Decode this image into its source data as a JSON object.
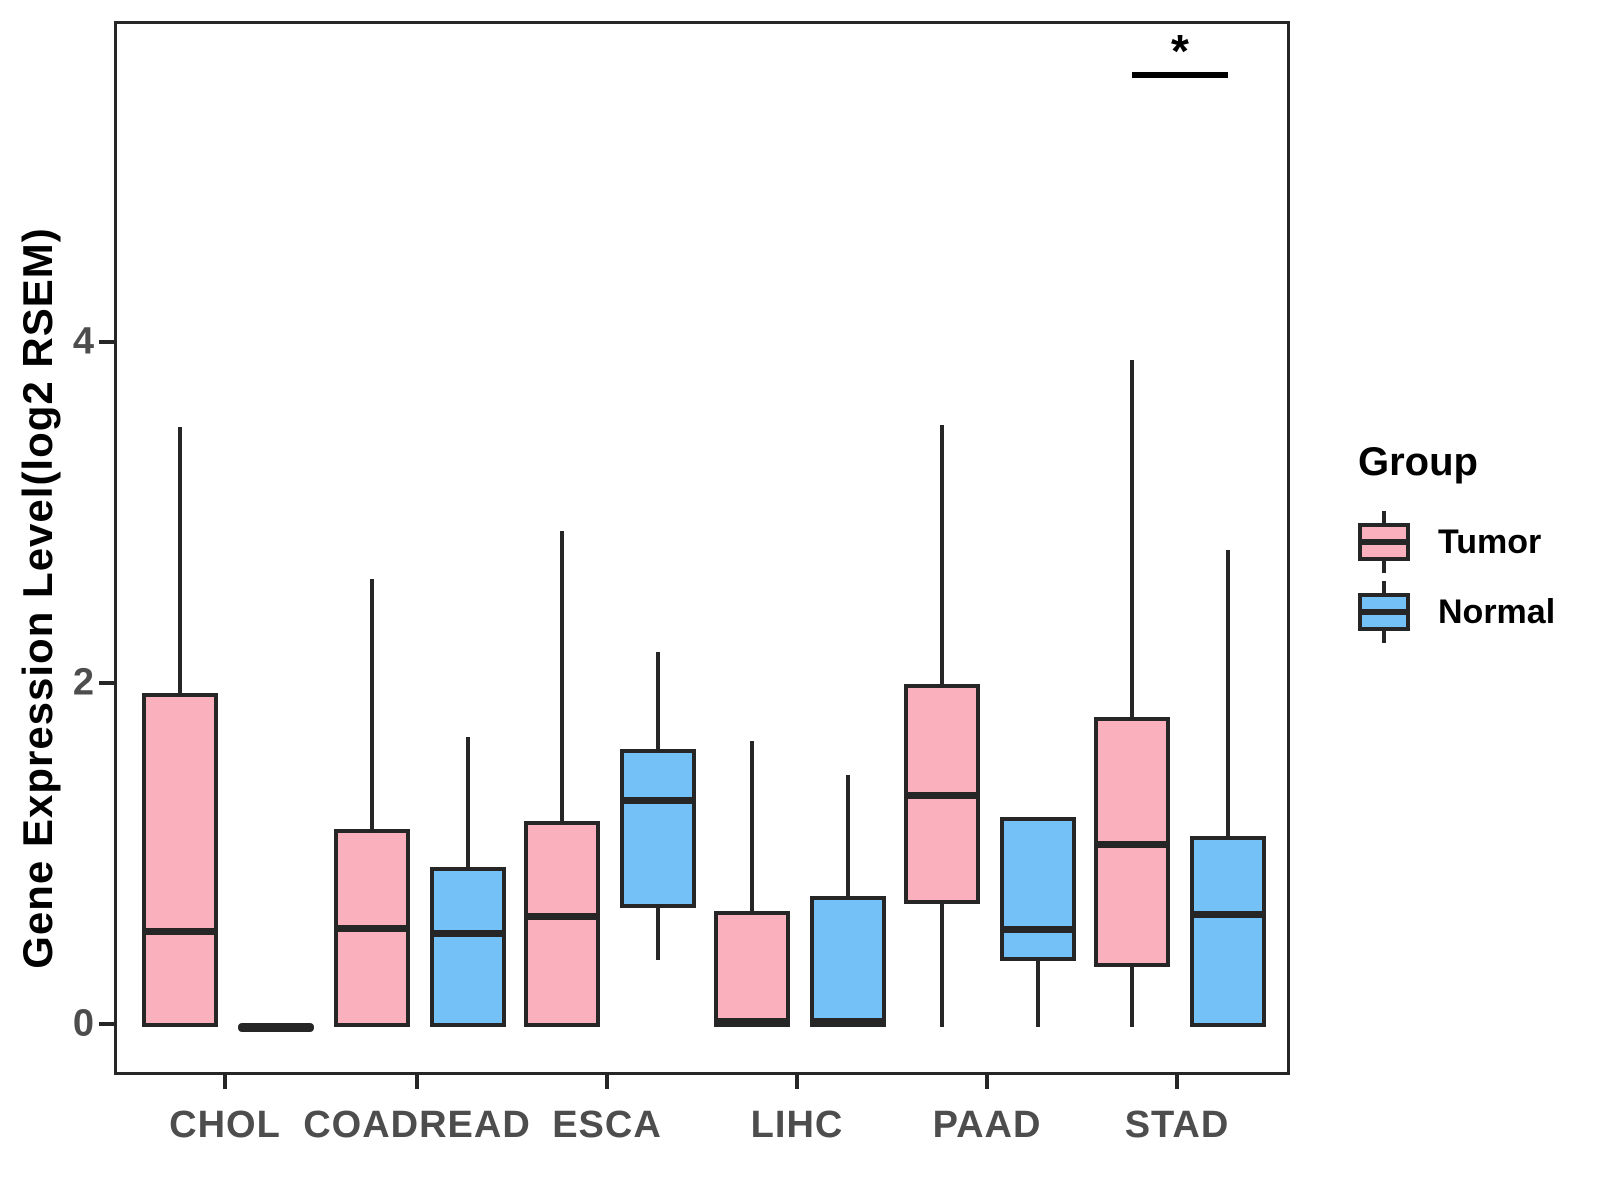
{
  "chart_data": {
    "type": "boxplot",
    "title": "",
    "xlabel": "",
    "ylabel": "Gene Expression Level(log2 RSEM)",
    "categories": [
      "CHOL",
      "COADREAD",
      "ESCA",
      "LIHC",
      "PAAD",
      "STAD"
    ],
    "yticks": [
      0,
      2,
      4
    ],
    "ytick_labels": [
      "0",
      "2",
      "4"
    ],
    "ylim": [
      -0.3,
      5.9
    ],
    "grid": false,
    "legend": {
      "title": "Group",
      "position": "right",
      "entries": [
        "Tumor",
        "Normal"
      ]
    },
    "colors": {
      "tumor_fill": "#FAB0BD",
      "normal_fill": "#74C1F8",
      "box_border": "#262626",
      "axis_text": "#4D4D4D",
      "title_text": "#000000"
    },
    "series": [
      {
        "name": "Tumor",
        "color": "#FAB0BD",
        "boxes": [
          {
            "category": "CHOL",
            "min": 0,
            "q1": 0,
            "median": 0.56,
            "q3": 1.96,
            "max": 3.52
          },
          {
            "category": "COADREAD",
            "min": 0,
            "q1": 0,
            "median": 0.58,
            "q3": 1.16,
            "max": 2.63
          },
          {
            "category": "ESCA",
            "min": 0,
            "q1": 0,
            "median": 0.65,
            "q3": 1.21,
            "max": 2.91
          },
          {
            "category": "LIHC",
            "min": 0,
            "q1": 0,
            "median": 0.0,
            "q3": 0.68,
            "max": 1.68
          },
          {
            "category": "PAAD",
            "min": 0,
            "q1": 0.72,
            "median": 1.36,
            "q3": 2.01,
            "max": 3.53
          },
          {
            "category": "STAD",
            "min": 0,
            "q1": 0.35,
            "median": 1.07,
            "q3": 1.82,
            "max": 3.91
          }
        ]
      },
      {
        "name": "Normal",
        "color": "#74C1F8",
        "boxes": [
          {
            "category": "CHOL",
            "min": 0,
            "q1": 0,
            "median": 0.0,
            "q3": 0,
            "max": 0
          },
          {
            "category": "COADREAD",
            "min": 0,
            "q1": 0,
            "median": 0.55,
            "q3": 0.94,
            "max": 1.7
          },
          {
            "category": "ESCA",
            "min": 0.39,
            "q1": 0.7,
            "median": 1.33,
            "q3": 1.63,
            "max": 2.2
          },
          {
            "category": "LIHC",
            "min": 0,
            "q1": 0,
            "median": 0.0,
            "q3": 0.77,
            "max": 1.48
          },
          {
            "category": "PAAD",
            "min": 0,
            "q1": 0.39,
            "median": 0.57,
            "q3": 1.23,
            "max": 1.23
          },
          {
            "category": "STAD",
            "min": 0,
            "q1": 0,
            "median": 0.66,
            "q3": 1.12,
            "max": 2.8
          }
        ]
      }
    ],
    "annotations": [
      {
        "type": "significance",
        "label": "*",
        "category": "STAD",
        "between": [
          "Tumor",
          "Normal"
        ],
        "y": 5.6
      }
    ]
  }
}
